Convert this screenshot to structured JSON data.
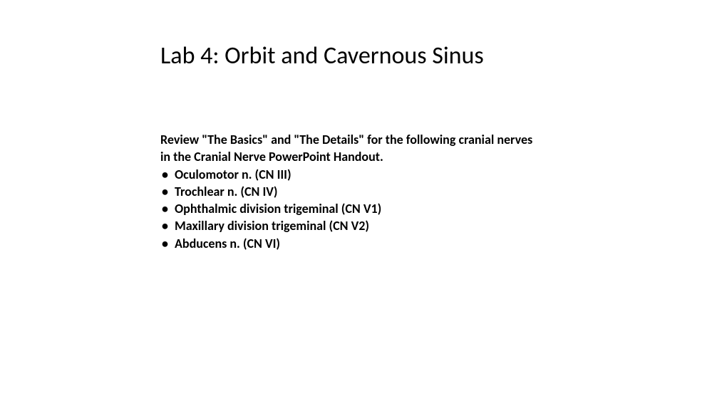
{
  "slide": {
    "title": "Lab 4: Orbit and Cavernous Sinus",
    "intro_line1": "Review \"The Basics\" and \"The Details\" for the following cranial nerves",
    "intro_line2": "in the Cranial Nerve PowerPoint Handout.",
    "bullets": [
      "Oculomotor n. (CN III)",
      "Trochlear n. (CN IV)",
      "Ophthalmic division trigeminal (CN V1)",
      "Maxillary division trigeminal (CN V2)",
      "Abducens n. (CN VI)"
    ]
  },
  "styling": {
    "background_color": "#ffffff",
    "text_color": "#000000",
    "title_fontsize": 34,
    "body_fontsize": 18,
    "font_family": "Calibri"
  }
}
